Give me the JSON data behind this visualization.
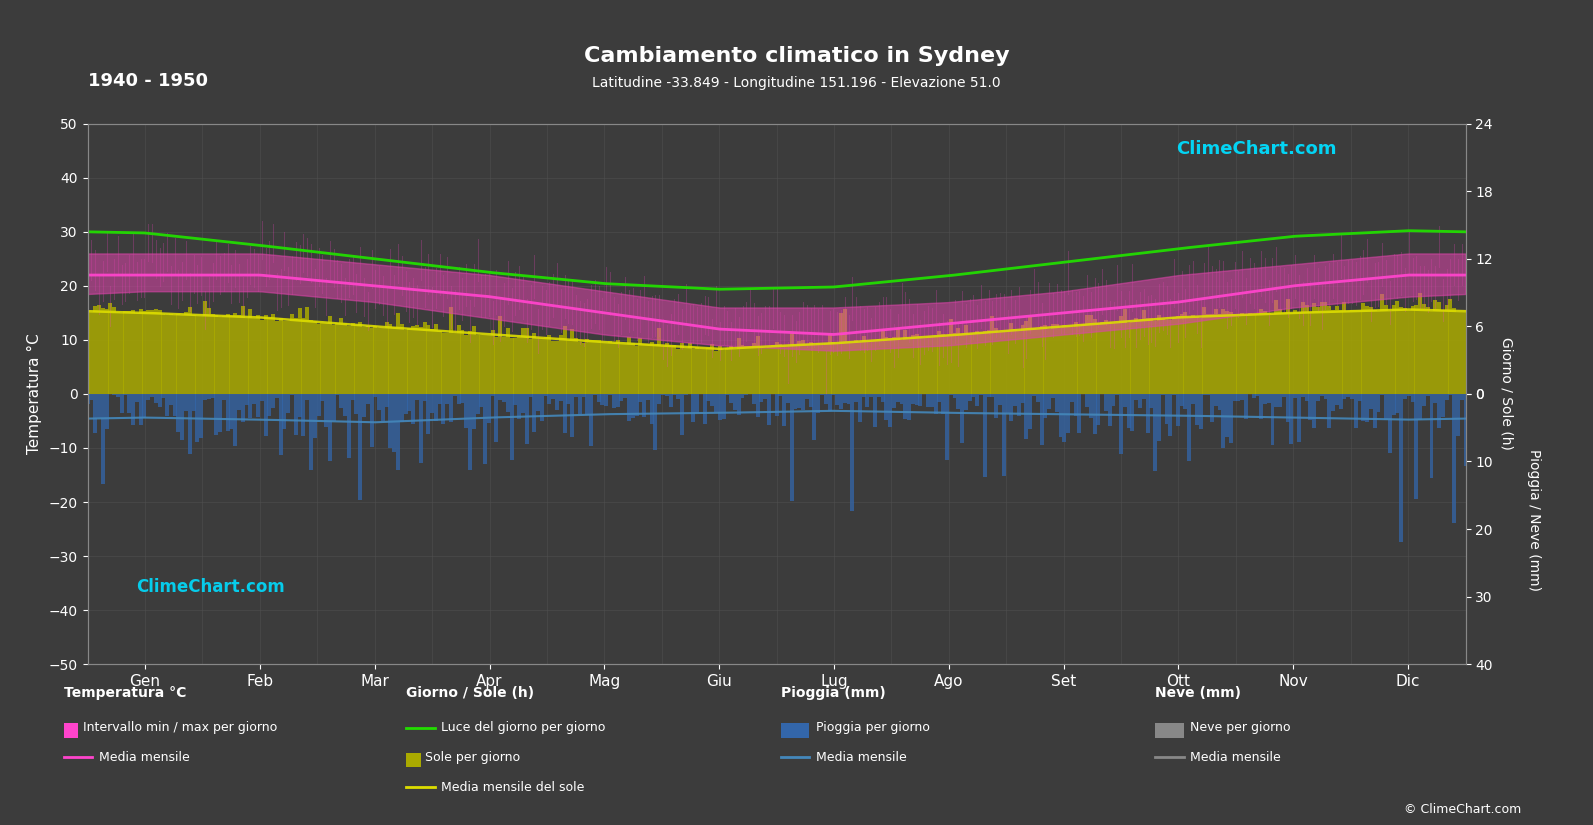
{
  "title": "Cambiamento climatico in Sydney",
  "subtitle": "Latitudine -33.849 - Longitudine 151.196 - Elevazione 51.0",
  "year_range": "1940 - 1950",
  "months": [
    "Gen",
    "Feb",
    "Mar",
    "Apr",
    "Mag",
    "Giu",
    "Lug",
    "Ago",
    "Set",
    "Ott",
    "Nov",
    "Dic"
  ],
  "background_color": "#3c3c3c",
  "plot_bg_color": "#3c3c3c",
  "grid_color": "#4f4f4f",
  "text_color": "#ffffff",
  "ylim_temp": [
    -50,
    50
  ],
  "temp_min_daily": [
    19,
    19,
    17,
    14,
    11,
    9,
    8,
    9,
    11,
    13,
    16,
    18
  ],
  "temp_max_daily": [
    26,
    26,
    24,
    22,
    19,
    16,
    16,
    17,
    19,
    22,
    24,
    26
  ],
  "temp_avg_monthly": [
    22,
    22,
    20,
    18,
    15,
    12,
    11,
    13,
    15,
    17,
    20,
    22
  ],
  "temp_min_extreme": [
    12,
    12,
    10,
    7,
    4,
    2,
    1,
    2,
    4,
    7,
    9,
    11
  ],
  "temp_max_extreme": [
    35,
    34,
    30,
    27,
    23,
    20,
    19,
    21,
    24,
    27,
    30,
    33
  ],
  "daylight_hours": [
    14.3,
    13.2,
    12.0,
    10.8,
    9.8,
    9.3,
    9.5,
    10.5,
    11.7,
    12.9,
    14.0,
    14.5
  ],
  "sunshine_hours_daily": [
    7.5,
    7.0,
    6.2,
    5.5,
    4.8,
    4.2,
    4.8,
    5.5,
    6.2,
    7.0,
    7.5,
    7.8
  ],
  "sunshine_avg": [
    7.2,
    6.8,
    6.0,
    5.3,
    4.6,
    4.0,
    4.5,
    5.2,
    6.0,
    6.8,
    7.2,
    7.5
  ],
  "rain_daily_base": [
    3.5,
    4.0,
    4.5,
    3.5,
    3.0,
    2.8,
    2.5,
    2.8,
    3.0,
    3.2,
    3.5,
    3.8
  ],
  "rain_avg_monthly": [
    3.5,
    3.8,
    4.2,
    3.5,
    3.0,
    2.8,
    2.5,
    2.8,
    3.0,
    3.2,
    3.5,
    3.8
  ],
  "num_days": 365,
  "color_magenta": "#ff44cc",
  "color_pink_fill": "#dd44aa",
  "color_green": "#22dd00",
  "color_yellow_olive": "#aaaa00",
  "color_yellow_line": "#dddd00",
  "color_blue_rain": "#3366aa",
  "color_blue_avg": "#4488bb",
  "color_gray_snow": "#888888",
  "logo_color": "#00ddff",
  "logo_text": "ClimeChart.com",
  "copyright_text": "© ClimeChart.com",
  "legend": {
    "temp_header": "Temperatura °C",
    "temp_range_label": "Intervallo min / max per giorno",
    "temp_avg_label": "Media mensile",
    "sun_header": "Giorno / Sole (h)",
    "daylight_label": "Luce del giorno per giorno",
    "sunshine_label": "Sole per giorno",
    "sunshine_avg_label": "Media mensile del sole",
    "rain_header": "Pioggia (mm)",
    "rain_label": "Pioggia per giorno",
    "rain_avg_label": "Media mensile",
    "snow_header": "Neve (mm)",
    "snow_label": "Neve per giorno",
    "snow_avg_label": "Media mensile"
  }
}
